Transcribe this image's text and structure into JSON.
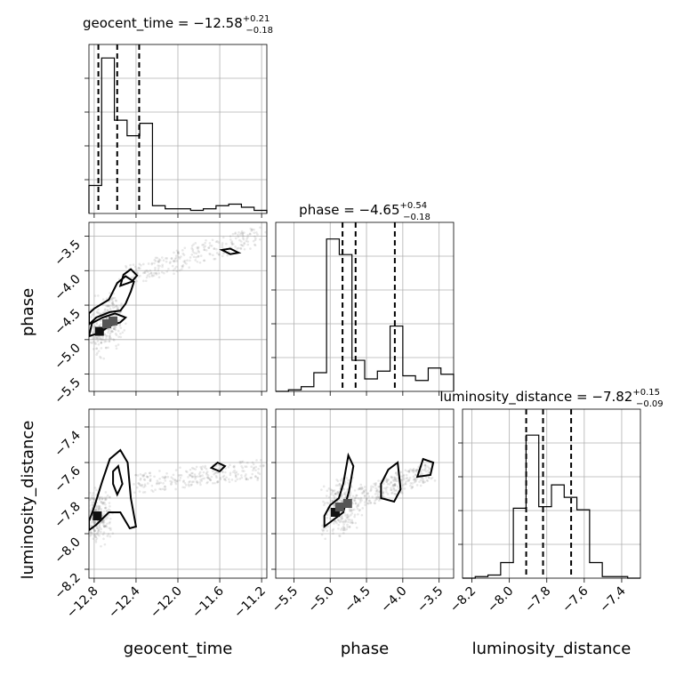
{
  "chart_data": {
    "type": "scatter",
    "subtype": "corner_plot",
    "grid": true,
    "parameters": [
      "geocent_time",
      "phase",
      "luminosity_distance"
    ],
    "axis_labels": {
      "geocent_time": "geocent_time",
      "phase": "phase",
      "luminosity_distance": "luminosity_distance"
    },
    "ranges": {
      "geocent_time": [
        -12.85,
        -11.15
      ],
      "phase": [
        -5.75,
        -3.3
      ],
      "luminosity_distance": [
        -8.25,
        -7.3
      ]
    },
    "ticks": {
      "geocent_time": [
        -12.8,
        -12.4,
        -12.0,
        -11.6,
        -11.2
      ],
      "phase": [
        -5.5,
        -5.0,
        -4.5,
        -4.0,
        -3.5
      ],
      "luminosity_distance": [
        -8.2,
        -8.0,
        -7.8,
        -7.6,
        -7.4
      ]
    },
    "tick_labels": {
      "geocent_time": [
        "−12.8",
        "−12.4",
        "−12.0",
        "−11.6",
        "−11.2"
      ],
      "phase": [
        "−5.5",
        "−5.0",
        "−4.5",
        "−4.0",
        "−3.5"
      ],
      "luminosity_distance": [
        "−8.2",
        "−8.0",
        "−7.8",
        "−7.6",
        "−7.4"
      ]
    },
    "titles": {
      "geocent_time": {
        "prefix": "geocent_time = −12.58",
        "sup": "+0.21",
        "sub": "−0.18"
      },
      "phase": {
        "prefix": "phase = −4.65",
        "sup": "+0.54",
        "sub": "−0.18"
      },
      "luminosity_distance": {
        "prefix": "luminosity_distance = −7.82",
        "sup": "+0.15",
        "sub": "−0.09"
      }
    },
    "quantiles": {
      "geocent_time": [
        -12.76,
        -12.58,
        -12.37
      ],
      "phase": [
        -4.83,
        -4.65,
        -4.11
      ],
      "luminosity_distance": [
        -7.91,
        -7.82,
        -7.67
      ]
    },
    "histograms": {
      "geocent_time": {
        "range": [
          -12.85,
          -11.15
        ],
        "counts": [
          0.18,
          1.0,
          0.6,
          0.5,
          0.58,
          0.05,
          0.03,
          0.03,
          0.02,
          0.03,
          0.05,
          0.06,
          0.04,
          0.02
        ]
      },
      "phase": {
        "range": [
          -5.75,
          -3.3
        ],
        "counts": [
          0.0,
          0.01,
          0.03,
          0.12,
          0.98,
          0.88,
          0.2,
          0.08,
          0.13,
          0.42,
          0.1,
          0.07,
          0.15,
          0.11
        ]
      },
      "luminosity_distance": {
        "range": [
          -8.25,
          -7.3
        ],
        "counts": [
          0.0,
          0.01,
          0.02,
          0.1,
          0.45,
          0.92,
          0.46,
          0.6,
          0.52,
          0.44,
          0.1,
          0.01,
          0.01,
          0.0
        ]
      }
    },
    "contours": {
      "phase_vs_geocent_time": [
        [
          [
            -12.85,
            -4.78
          ],
          [
            -12.78,
            -4.68
          ],
          [
            -12.65,
            -4.6
          ],
          [
            -12.55,
            -4.58
          ],
          [
            -12.5,
            -4.48
          ],
          [
            -12.45,
            -4.3
          ],
          [
            -12.42,
            -4.16
          ],
          [
            -12.5,
            -4.08
          ],
          [
            -12.58,
            -4.18
          ],
          [
            -12.66,
            -4.42
          ],
          [
            -12.8,
            -4.55
          ],
          [
            -12.85,
            -4.62
          ]
        ],
        [
          [
            -12.55,
            -4.22
          ],
          [
            -12.44,
            -4.16
          ],
          [
            -12.39,
            -4.07
          ],
          [
            -12.45,
            -3.98
          ],
          [
            -12.52,
            -4.06
          ],
          [
            -12.55,
            -4.22
          ]
        ],
        [
          [
            -12.85,
            -4.95
          ],
          [
            -12.75,
            -4.9
          ],
          [
            -12.65,
            -4.8
          ],
          [
            -12.55,
            -4.75
          ],
          [
            -12.5,
            -4.68
          ],
          [
            -12.6,
            -4.62
          ],
          [
            -12.72,
            -4.68
          ],
          [
            -12.82,
            -4.76
          ]
        ],
        [
          [
            -11.58,
            -3.7
          ],
          [
            -11.5,
            -3.68
          ],
          [
            -11.42,
            -3.74
          ],
          [
            -11.5,
            -3.76
          ],
          [
            -11.58,
            -3.7
          ]
        ]
      ],
      "luminosity_distance_vs_geocent_time": [
        [
          [
            -12.85,
            -7.93
          ],
          [
            -12.8,
            -7.85
          ],
          [
            -12.72,
            -7.7
          ],
          [
            -12.65,
            -7.58
          ],
          [
            -12.55,
            -7.53
          ],
          [
            -12.48,
            -7.6
          ],
          [
            -12.45,
            -7.8
          ],
          [
            -12.4,
            -7.96
          ],
          [
            -12.46,
            -7.97
          ],
          [
            -12.55,
            -7.88
          ],
          [
            -12.66,
            -7.88
          ],
          [
            -12.78,
            -7.95
          ],
          [
            -12.85,
            -7.98
          ]
        ],
        [
          [
            -12.62,
            -7.65
          ],
          [
            -12.57,
            -7.62
          ],
          [
            -12.53,
            -7.72
          ],
          [
            -12.58,
            -7.78
          ],
          [
            -12.62,
            -7.72
          ],
          [
            -12.62,
            -7.65
          ]
        ],
        [
          [
            -11.68,
            -7.63
          ],
          [
            -11.62,
            -7.6
          ],
          [
            -11.55,
            -7.62
          ],
          [
            -11.6,
            -7.65
          ],
          [
            -11.68,
            -7.63
          ]
        ]
      ],
      "luminosity_distance_vs_phase": [
        [
          [
            -5.08,
            -7.96
          ],
          [
            -4.95,
            -7.92
          ],
          [
            -4.82,
            -7.88
          ],
          [
            -4.74,
            -7.76
          ],
          [
            -4.68,
            -7.62
          ],
          [
            -4.75,
            -7.56
          ],
          [
            -4.82,
            -7.72
          ],
          [
            -4.88,
            -7.8
          ],
          [
            -5.0,
            -7.84
          ],
          [
            -5.08,
            -7.9
          ]
        ],
        [
          [
            -4.3,
            -7.8
          ],
          [
            -4.12,
            -7.82
          ],
          [
            -4.03,
            -7.75
          ],
          [
            -4.07,
            -7.6
          ],
          [
            -4.2,
            -7.64
          ],
          [
            -4.3,
            -7.72
          ],
          [
            -4.3,
            -7.8
          ]
        ],
        [
          [
            -3.8,
            -7.68
          ],
          [
            -3.62,
            -7.67
          ],
          [
            -3.58,
            -7.6
          ],
          [
            -3.72,
            -7.58
          ],
          [
            -3.8,
            -7.68
          ]
        ]
      ]
    },
    "dense_points": {
      "phase_vs_geocent_time": [
        [
          -12.75,
          -4.88
        ],
        [
          -12.68,
          -4.77
        ],
        [
          -12.62,
          -4.73
        ]
      ],
      "luminosity_distance_vs_geocent_time": [
        [
          -12.77,
          -7.9
        ]
      ],
      "luminosity_distance_vs_phase": [
        [
          -4.93,
          -7.88
        ],
        [
          -4.87,
          -7.85
        ],
        [
          -4.76,
          -7.83
        ]
      ]
    },
    "trends": {
      "phase_vs_geocent_time": [
        [
          -12.5,
          -4.08
        ],
        [
          -12.2,
          -3.95
        ],
        [
          -11.8,
          -3.75
        ],
        [
          -11.5,
          -3.6
        ],
        [
          -11.2,
          -3.47
        ]
      ],
      "luminosity_distance_vs_geocent_time": [
        [
          -12.4,
          -7.72
        ],
        [
          -12.0,
          -7.69
        ],
        [
          -11.6,
          -7.66
        ],
        [
          -11.2,
          -7.64
        ]
      ],
      "luminosity_distance_vs_phase": [
        [
          -4.6,
          -7.8
        ],
        [
          -4.3,
          -7.76
        ],
        [
          -4.0,
          -7.7
        ],
        [
          -3.6,
          -7.65
        ]
      ]
    }
  }
}
